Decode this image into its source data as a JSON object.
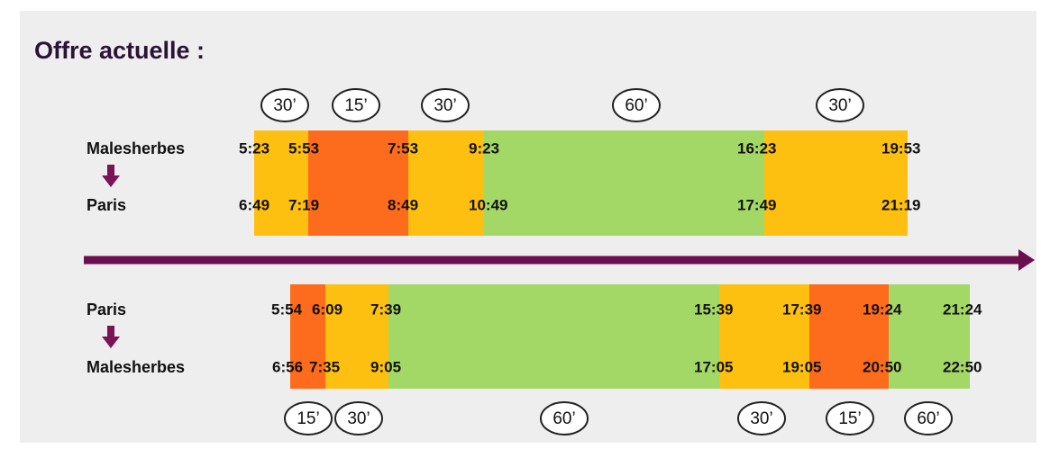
{
  "title": "Offre actuelle :",
  "directions": [
    {
      "from": "Malesherbes",
      "to": "Paris",
      "departures": [
        "5:23",
        "5:53",
        "7:53",
        "9:23",
        "16:23",
        "19:53"
      ],
      "arrivals": [
        "6:49",
        "7:19",
        "8:49",
        "10:49",
        "17:49",
        "21:19"
      ],
      "frequencies": [
        "30’",
        "15’",
        "30’",
        "60’",
        "30’"
      ]
    },
    {
      "from": "Paris",
      "to": "Malesherbes",
      "departures": [
        "5:54",
        "6:09",
        "7:39",
        "15:39",
        "17:39",
        "19:24",
        "21:24"
      ],
      "arrivals": [
        "6:56",
        "7:35",
        "9:05",
        "17:05",
        "19:05",
        "20:50",
        "22:50"
      ],
      "frequencies": [
        "15’",
        "30’",
        "60’",
        "30’",
        "15’",
        "60’"
      ]
    }
  ]
}
